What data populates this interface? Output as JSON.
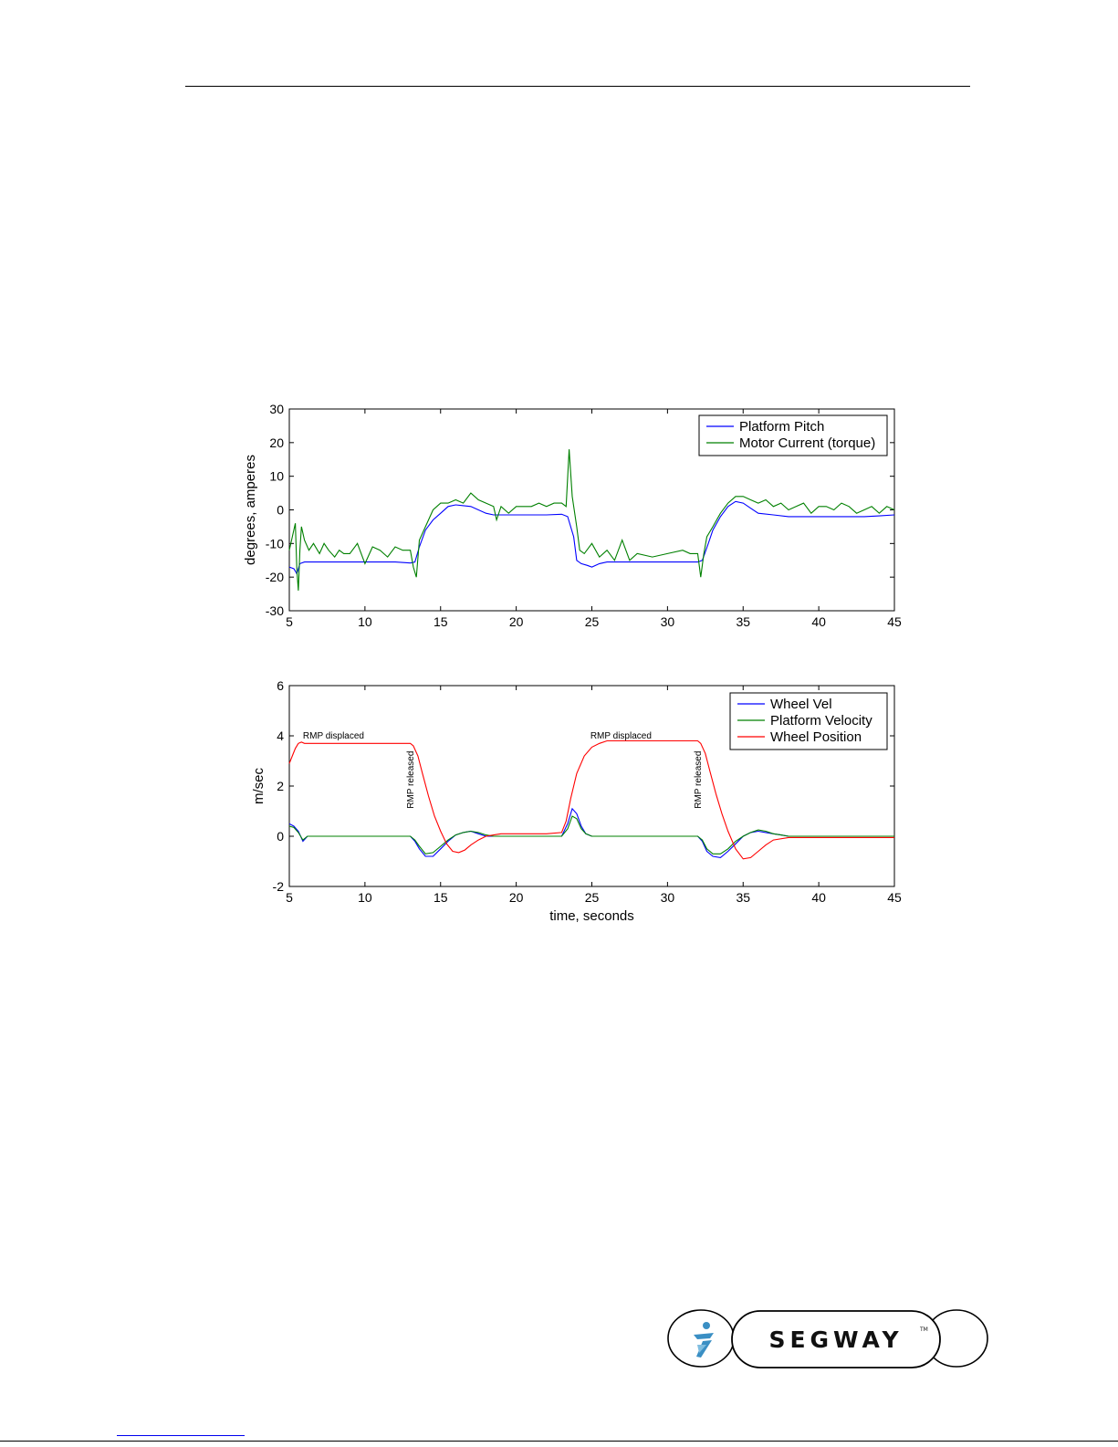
{
  "logo": {
    "text": "SEGWAY",
    "trademark": "TM"
  },
  "chart_data": [
    {
      "type": "line",
      "title": "",
      "xlabel": "",
      "ylabel": "degrees, amperes",
      "xlim": [
        5,
        45
      ],
      "ylim": [
        -30,
        30
      ],
      "xticks": [
        5,
        10,
        15,
        20,
        25,
        30,
        35,
        40,
        45
      ],
      "yticks": [
        -30,
        -20,
        -10,
        0,
        10,
        20,
        30
      ],
      "grid": false,
      "legend_position": "top-right",
      "series": [
        {
          "name": "Platform Pitch",
          "color": "#0000ff",
          "x": [
            5,
            5.3,
            5.5,
            5.7,
            6,
            7,
            8,
            9,
            10,
            11,
            12,
            13,
            13.3,
            13.6,
            14,
            14.5,
            15,
            15.5,
            16,
            17,
            18,
            18.5,
            19,
            20,
            21,
            22,
            23,
            23.4,
            23.8,
            24,
            24.3,
            24.7,
            25,
            25.5,
            26,
            27,
            28,
            29,
            30,
            31,
            32,
            32.3,
            32.7,
            33,
            33.5,
            34,
            34.5,
            35,
            35.5,
            36,
            37,
            38,
            39,
            40,
            41,
            42,
            43,
            44,
            45
          ],
          "y": [
            -17,
            -17.5,
            -19,
            -16,
            -15.5,
            -15.5,
            -15.5,
            -15.5,
            -15.5,
            -15.5,
            -15.5,
            -15.8,
            -15.5,
            -11,
            -6,
            -3,
            -1,
            1,
            1.5,
            1,
            -1,
            -1.5,
            -1.5,
            -1.5,
            -1.5,
            -1.5,
            -1.3,
            -2,
            -8,
            -15,
            -16,
            -16.5,
            -17,
            -16,
            -15.5,
            -15.5,
            -15.5,
            -15.5,
            -15.5,
            -15.5,
            -15.5,
            -15,
            -10,
            -6,
            -2,
            1,
            2.5,
            2,
            0.5,
            -1,
            -1.5,
            -2,
            -2,
            -2,
            -2,
            -2,
            -2,
            -1.8,
            -1.5
          ]
        },
        {
          "name": "Motor Current (torque)",
          "color": "#008000",
          "x": [
            5,
            5.2,
            5.4,
            5.5,
            5.6,
            5.7,
            5.8,
            6,
            6.3,
            6.6,
            7,
            7.3,
            7.6,
            8,
            8.3,
            8.6,
            9,
            9.5,
            10,
            10.5,
            11,
            11.5,
            12,
            12.5,
            13,
            13.2,
            13.4,
            13.6,
            14,
            14.5,
            15,
            15.5,
            16,
            16.5,
            17,
            17.5,
            18,
            18.5,
            18.7,
            19,
            19.5,
            20,
            21,
            21.5,
            22,
            22.5,
            23,
            23.3,
            23.5,
            23.7,
            24,
            24.2,
            24.5,
            25,
            25.5,
            26,
            26.5,
            27,
            27.5,
            28,
            29,
            30,
            31,
            31.5,
            32,
            32.2,
            32.4,
            32.6,
            33,
            33.5,
            34,
            34.5,
            35,
            35.5,
            36,
            36.5,
            37,
            37.5,
            38,
            38.5,
            39,
            39.5,
            40,
            40.5,
            41,
            41.5,
            42,
            42.5,
            43,
            43.5,
            44,
            44.5,
            45
          ],
          "y": [
            -12,
            -8,
            -4,
            -18,
            -24,
            -12,
            -5,
            -9,
            -12,
            -10,
            -13,
            -10,
            -12,
            -14,
            -12,
            -13,
            -13,
            -10,
            -16,
            -11,
            -12,
            -14,
            -11,
            -12,
            -12,
            -17,
            -20,
            -9,
            -5,
            0,
            2,
            2,
            3,
            2,
            5,
            3,
            2,
            1,
            -3,
            1,
            -1,
            1,
            1,
            2,
            1,
            2,
            2,
            1,
            18,
            4,
            -5,
            -12,
            -13,
            -10,
            -14,
            -12,
            -15,
            -9,
            -15,
            -13,
            -14,
            -13,
            -12,
            -13,
            -13,
            -20,
            -13,
            -8,
            -5,
            -1,
            2,
            4,
            4,
            3,
            2,
            3,
            1,
            2,
            0,
            1,
            2,
            -1,
            1,
            1,
            0,
            2,
            1,
            -1,
            0,
            1,
            -1,
            1,
            0
          ]
        }
      ]
    },
    {
      "type": "line",
      "title": "",
      "xlabel": "time, seconds",
      "ylabel": "m/sec",
      "xlim": [
        5,
        45
      ],
      "ylim": [
        -2,
        6
      ],
      "xticks": [
        5,
        10,
        15,
        20,
        25,
        30,
        35,
        40,
        45
      ],
      "yticks": [
        -2,
        0,
        2,
        4,
        6
      ],
      "grid": false,
      "legend_position": "top-right",
      "annotations": [
        {
          "text": "RMP displaced",
          "x": 5.9,
          "y": 3.9
        },
        {
          "text": "RMP released",
          "x": 13.2,
          "y": 1.1,
          "rotation": -90
        },
        {
          "text": "RMP displaced",
          "x": 24.9,
          "y": 3.9
        },
        {
          "text": "RMP released",
          "x": 32.2,
          "y": 1.1,
          "rotation": -90
        }
      ],
      "series": [
        {
          "name": "Wheel Vel",
          "color": "#0000ff",
          "x": [
            5,
            5.3,
            5.6,
            5.9,
            6.2,
            7,
            9,
            11,
            13,
            13.3,
            13.6,
            14,
            14.5,
            15,
            15.5,
            16,
            16.5,
            17,
            17.5,
            18,
            18.5,
            19,
            20,
            22,
            23,
            23.4,
            23.7,
            24,
            24.3,
            24.6,
            25,
            26,
            28,
            30,
            32,
            32.3,
            32.6,
            33,
            33.5,
            34,
            34.5,
            35,
            35.5,
            36,
            36.5,
            37,
            37.5,
            38,
            40,
            42,
            44,
            45
          ],
          "y": [
            0.5,
            0.4,
            0.2,
            -0.2,
            0,
            0,
            0,
            0,
            0,
            -0.2,
            -0.5,
            -0.8,
            -0.8,
            -0.5,
            -0.2,
            0.05,
            0.15,
            0.2,
            0.1,
            0,
            0,
            0,
            0,
            0,
            0,
            0.5,
            1.1,
            0.9,
            0.4,
            0.1,
            0,
            0,
            0,
            0,
            0,
            -0.2,
            -0.6,
            -0.8,
            -0.85,
            -0.6,
            -0.3,
            0,
            0.15,
            0.2,
            0.15,
            0.1,
            0.05,
            0,
            0,
            0,
            0,
            0
          ]
        },
        {
          "name": "Platform Velocity",
          "color": "#008000",
          "x": [
            5,
            5.3,
            5.6,
            5.9,
            6.2,
            7,
            9,
            11,
            13,
            13.3,
            13.6,
            14,
            14.5,
            15,
            15.5,
            16,
            16.5,
            17,
            17.5,
            18,
            18.5,
            19,
            20,
            22,
            23,
            23.4,
            23.7,
            24,
            24.3,
            24.6,
            25,
            26,
            28,
            30,
            32,
            32.3,
            32.6,
            33,
            33.5,
            34,
            34.5,
            35,
            35.5,
            36,
            36.5,
            37,
            37.5,
            38,
            40,
            42,
            44,
            45
          ],
          "y": [
            0.4,
            0.35,
            0.15,
            -0.15,
            0,
            0,
            0,
            0,
            0,
            -0.15,
            -0.4,
            -0.7,
            -0.65,
            -0.4,
            -0.15,
            0.05,
            0.15,
            0.2,
            0.15,
            0.05,
            0,
            0,
            0,
            0,
            0,
            0.3,
            0.8,
            0.7,
            0.3,
            0.1,
            0,
            0,
            0,
            0,
            0,
            -0.15,
            -0.5,
            -0.7,
            -0.7,
            -0.5,
            -0.2,
            0,
            0.15,
            0.25,
            0.2,
            0.1,
            0.05,
            0,
            0,
            0,
            0,
            0
          ]
        },
        {
          "name": "Wheel Position",
          "color": "#ff0000",
          "x": [
            5,
            5.2,
            5.4,
            5.6,
            5.8,
            6,
            7,
            8,
            10,
            12,
            13,
            13.2,
            13.5,
            13.8,
            14.2,
            14.6,
            15,
            15.4,
            15.8,
            16.2,
            16.6,
            17,
            17.5,
            18,
            18.5,
            19,
            20,
            22,
            23,
            23.3,
            23.6,
            24,
            24.5,
            25,
            25.5,
            26,
            27,
            28,
            30,
            32,
            32.2,
            32.5,
            32.8,
            33.2,
            33.6,
            34,
            34.5,
            35,
            35.5,
            36,
            36.5,
            37,
            38,
            40,
            42,
            45
          ],
          "y": [
            2.9,
            3.2,
            3.5,
            3.7,
            3.75,
            3.7,
            3.7,
            3.7,
            3.7,
            3.7,
            3.7,
            3.6,
            3.2,
            2.5,
            1.6,
            0.8,
            0.2,
            -0.3,
            -0.6,
            -0.65,
            -0.55,
            -0.35,
            -0.15,
            0,
            0.05,
            0.1,
            0.1,
            0.1,
            0.15,
            0.6,
            1.5,
            2.5,
            3.2,
            3.55,
            3.7,
            3.8,
            3.8,
            3.8,
            3.8,
            3.8,
            3.7,
            3.3,
            2.6,
            1.7,
            0.9,
            0.2,
            -0.5,
            -0.9,
            -0.85,
            -0.6,
            -0.35,
            -0.15,
            -0.05,
            -0.05,
            -0.05,
            -0.05
          ]
        }
      ]
    }
  ]
}
